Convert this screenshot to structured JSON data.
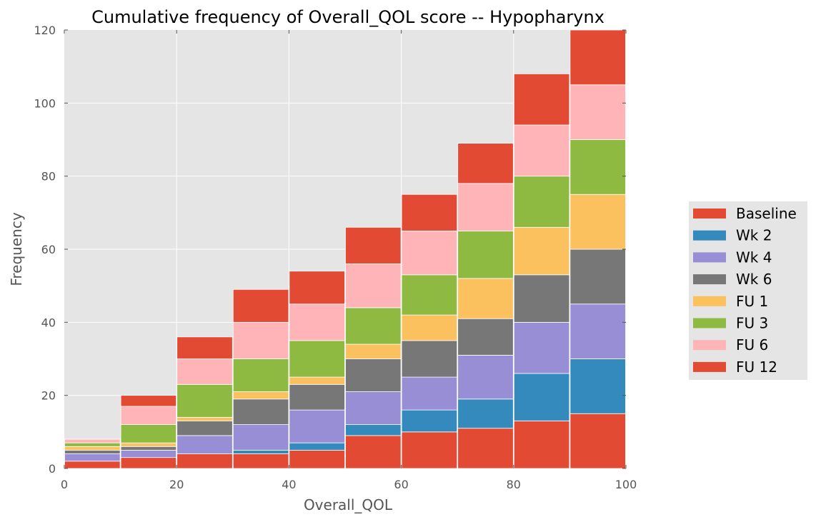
{
  "chart_data": {
    "type": "bar",
    "title": "Cumulative frequency of Overall_QOL score -- Hypopharynx",
    "xlabel": "Overall_QOL",
    "ylabel": "Frequency",
    "xlim": [
      0,
      100
    ],
    "ylim": [
      0,
      120
    ],
    "x_ticks": [
      0,
      20,
      40,
      60,
      80,
      100
    ],
    "y_ticks": [
      0,
      20,
      40,
      60,
      80,
      100,
      120
    ],
    "bin_edges": [
      0,
      10,
      20,
      30,
      40,
      50,
      60,
      70,
      80,
      90,
      100
    ],
    "grid": true,
    "legend_position": "right",
    "series": [
      {
        "name": "Baseline",
        "color": "#E24A33",
        "values": [
          2,
          3,
          4,
          4,
          5,
          9,
          10,
          11,
          13,
          15
        ]
      },
      {
        "name": "Wk 2",
        "color": "#348ABD",
        "values": [
          0,
          0,
          0,
          1,
          2,
          3,
          6,
          8,
          13,
          15
        ]
      },
      {
        "name": "Wk 4",
        "color": "#988ED5",
        "values": [
          2,
          2,
          5,
          7,
          9,
          9,
          9,
          12,
          14,
          15
        ]
      },
      {
        "name": "Wk 6",
        "color": "#777777",
        "values": [
          1,
          1,
          4,
          7,
          7,
          9,
          10,
          10,
          13,
          15
        ]
      },
      {
        "name": "FU 1",
        "color": "#FBC15E",
        "values": [
          1,
          1,
          1,
          2,
          2,
          4,
          7,
          11,
          13,
          15
        ]
      },
      {
        "name": "FU 3",
        "color": "#8EBA42",
        "values": [
          1,
          5,
          9,
          9,
          10,
          10,
          11,
          13,
          14,
          15
        ]
      },
      {
        "name": "FU 6",
        "color": "#FFB5B8",
        "values": [
          1,
          5,
          7,
          10,
          10,
          12,
          12,
          13,
          14,
          15
        ]
      },
      {
        "name": "FU 12",
        "color": "#E24A33",
        "values": [
          0,
          3,
          6,
          9,
          9,
          10,
          10,
          11,
          14,
          15
        ]
      }
    ]
  }
}
